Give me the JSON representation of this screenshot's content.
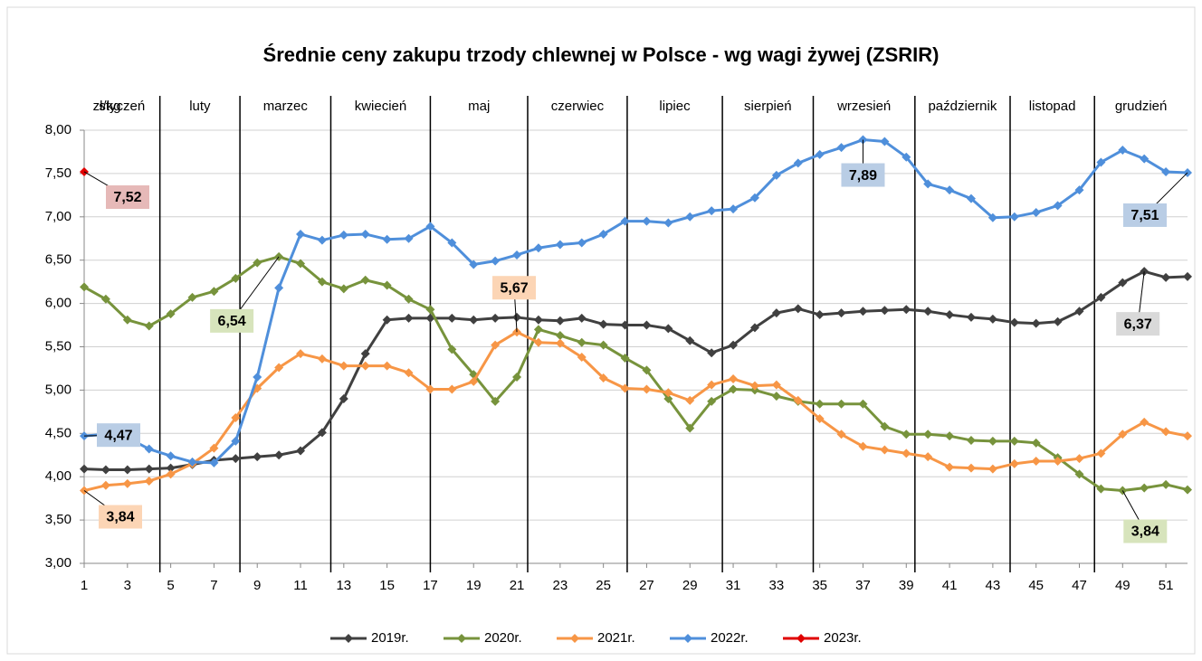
{
  "chart_data": {
    "type": "line",
    "title": "Średnie ceny zakupu trzody chlewnej w Polsce - wg wagi żywej (ZSRIR)",
    "y_label": "zł/kg",
    "months": [
      "styczeń",
      "luty",
      "marzec",
      "kwiecień",
      "maj",
      "czerwiec",
      "lipiec",
      "sierpień",
      "wrzesień",
      "październik",
      "listopad",
      "grudzień"
    ],
    "x": [
      1,
      2,
      3,
      4,
      5,
      6,
      7,
      8,
      9,
      10,
      11,
      12,
      13,
      14,
      15,
      16,
      17,
      18,
      19,
      20,
      21,
      22,
      23,
      24,
      25,
      26,
      27,
      28,
      29,
      30,
      31,
      32,
      33,
      34,
      35,
      36,
      37,
      38,
      39,
      40,
      41,
      42,
      43,
      44,
      45,
      46,
      47,
      48,
      49,
      50,
      51,
      52
    ],
    "xlim": [
      1,
      52
    ],
    "xticks": [
      1,
      3,
      5,
      7,
      9,
      11,
      13,
      15,
      17,
      19,
      21,
      23,
      25,
      27,
      29,
      31,
      33,
      35,
      37,
      39,
      41,
      43,
      45,
      47,
      49,
      51
    ],
    "ylim": [
      3,
      8
    ],
    "yticks": [
      {
        "value": 3,
        "label": "3,00"
      },
      {
        "value": 3.5,
        "label": "3,50"
      },
      {
        "value": 4,
        "label": "4,00"
      },
      {
        "value": 4.5,
        "label": "4,50"
      },
      {
        "value": 5,
        "label": "5,00"
      },
      {
        "value": 5.5,
        "label": "5,50"
      },
      {
        "value": 6,
        "label": "6,00"
      },
      {
        "value": 6.5,
        "label": "6,50"
      },
      {
        "value": 7,
        "label": "7,00"
      },
      {
        "value": 7.5,
        "label": "7,50"
      },
      {
        "value": 8,
        "label": "8,00"
      }
    ],
    "grid": true,
    "legend": "bottom",
    "series": [
      {
        "name": "2019r.",
        "color": "#404040",
        "values": [
          4.09,
          4.08,
          4.08,
          4.09,
          4.1,
          4.14,
          4.19,
          4.21,
          4.23,
          4.25,
          4.3,
          4.51,
          4.9,
          5.42,
          5.81,
          5.83,
          5.83,
          5.83,
          5.81,
          5.83,
          5.84,
          5.81,
          5.8,
          5.83,
          5.76,
          5.75,
          5.75,
          5.71,
          5.57,
          5.43,
          5.52,
          5.72,
          5.89,
          5.94,
          5.87,
          5.89,
          5.91,
          5.92,
          5.93,
          5.91,
          5.87,
          5.84,
          5.82,
          5.78,
          5.77,
          5.79,
          5.91,
          6.07,
          6.24,
          6.37,
          6.3,
          6.31
        ],
        "value_labels": [
          null,
          null,
          null,
          null,
          null,
          null,
          null,
          null,
          null,
          null,
          null,
          null,
          null,
          null,
          null,
          null,
          null,
          null,
          null,
          null,
          null,
          null,
          null,
          null,
          null,
          null,
          null,
          null,
          null,
          null,
          null,
          null,
          null,
          null,
          null,
          null,
          null,
          null,
          null,
          null,
          null,
          null,
          null,
          null,
          null,
          null,
          null,
          null,
          null,
          "6,37",
          null,
          null
        ]
      },
      {
        "name": "2020r.",
        "color": "#77933c",
        "values": [
          6.19,
          6.05,
          5.81,
          5.74,
          5.88,
          6.07,
          6.14,
          6.29,
          6.47,
          6.54,
          6.46,
          6.25,
          6.17,
          6.27,
          6.21,
          6.05,
          5.93,
          5.47,
          5.18,
          4.87,
          5.15,
          5.7,
          5.63,
          5.55,
          5.52,
          5.37,
          5.23,
          4.9,
          4.56,
          4.87,
          5.01,
          5.0,
          4.93,
          4.87,
          4.84,
          4.84,
          4.84,
          4.58,
          4.49,
          4.49,
          4.47,
          4.42,
          4.41,
          4.41,
          4.39,
          4.22,
          4.03,
          3.86,
          3.84,
          3.87,
          3.91,
          3.85
        ],
        "value_labels": [
          null,
          null,
          null,
          null,
          null,
          null,
          null,
          null,
          null,
          "6,54",
          null,
          null,
          null,
          null,
          null,
          null,
          null,
          null,
          null,
          null,
          null,
          null,
          null,
          null,
          null,
          null,
          null,
          null,
          null,
          null,
          null,
          null,
          null,
          null,
          null,
          null,
          null,
          null,
          null,
          null,
          null,
          null,
          null,
          null,
          null,
          null,
          null,
          null,
          "3,84",
          null,
          null,
          null
        ]
      },
      {
        "name": "2021r.",
        "color": "#f79646",
        "values": [
          3.84,
          3.9,
          3.92,
          3.95,
          4.03,
          4.15,
          4.33,
          4.68,
          5.02,
          5.26,
          5.42,
          5.36,
          5.28,
          5.28,
          5.28,
          5.2,
          5.01,
          5.01,
          5.1,
          5.52,
          5.67,
          5.55,
          5.54,
          5.38,
          5.14,
          5.02,
          5.01,
          4.97,
          4.88,
          5.06,
          5.13,
          5.05,
          5.06,
          4.88,
          4.67,
          4.49,
          4.35,
          4.31,
          4.27,
          4.23,
          4.11,
          4.1,
          4.09,
          4.15,
          4.18,
          4.18,
          4.21,
          4.27,
          4.49,
          4.63,
          4.52,
          4.47
        ],
        "value_labels": [
          "3,84",
          null,
          null,
          null,
          null,
          null,
          null,
          null,
          null,
          null,
          null,
          null,
          null,
          null,
          null,
          null,
          null,
          null,
          null,
          null,
          "5,67",
          null,
          null,
          null,
          null,
          null,
          null,
          null,
          null,
          null,
          null,
          null,
          null,
          null,
          null,
          null,
          null,
          null,
          null,
          null,
          null,
          null,
          null,
          null,
          null,
          null,
          null,
          null,
          null,
          null,
          null,
          null
        ]
      },
      {
        "name": "2022r.",
        "color": "#4f8fdb",
        "values": [
          4.47,
          4.49,
          4.45,
          4.32,
          4.24,
          4.17,
          4.16,
          4.41,
          5.15,
          6.18,
          6.8,
          6.73,
          6.79,
          6.8,
          6.74,
          6.75,
          6.89,
          6.7,
          6.45,
          6.49,
          6.56,
          6.64,
          6.68,
          6.7,
          6.8,
          6.95,
          6.95,
          6.93,
          7.0,
          7.07,
          7.09,
          7.22,
          7.48,
          7.62,
          7.72,
          7.8,
          7.89,
          7.87,
          7.69,
          7.38,
          7.31,
          7.21,
          6.99,
          7.0,
          7.05,
          7.13,
          7.31,
          7.63,
          7.77,
          7.67,
          7.52,
          7.51
        ],
        "value_labels": [
          "4,47",
          null,
          null,
          null,
          null,
          null,
          null,
          null,
          null,
          null,
          null,
          null,
          null,
          null,
          null,
          null,
          null,
          null,
          null,
          null,
          null,
          null,
          null,
          null,
          null,
          null,
          null,
          null,
          null,
          null,
          null,
          null,
          null,
          null,
          null,
          null,
          "7,89",
          null,
          null,
          null,
          null,
          null,
          null,
          null,
          null,
          null,
          null,
          null,
          null,
          null,
          null,
          "7,51"
        ]
      },
      {
        "name": "2023r.",
        "color": "#e00000",
        "values": [
          7.52,
          null,
          null,
          null,
          null,
          null,
          null,
          null,
          null,
          null,
          null,
          null,
          null,
          null,
          null,
          null,
          null,
          null,
          null,
          null,
          null,
          null,
          null,
          null,
          null,
          null,
          null,
          null,
          null,
          null,
          null,
          null,
          null,
          null,
          null,
          null,
          null,
          null,
          null,
          null,
          null,
          null,
          null,
          null,
          null,
          null,
          null,
          null,
          null,
          null,
          null,
          null
        ],
        "value_labels": [
          "7,52",
          null,
          null,
          null,
          null,
          null,
          null,
          null,
          null,
          null,
          null,
          null,
          null,
          null,
          null,
          null,
          null,
          null,
          null,
          null,
          null,
          null,
          null,
          null,
          null,
          null,
          null,
          null,
          null,
          null,
          null,
          null,
          null,
          null,
          null,
          null,
          null,
          null,
          null,
          null,
          null,
          null,
          null,
          null,
          null,
          null,
          null,
          null,
          null,
          null,
          null,
          null
        ]
      }
    ]
  }
}
